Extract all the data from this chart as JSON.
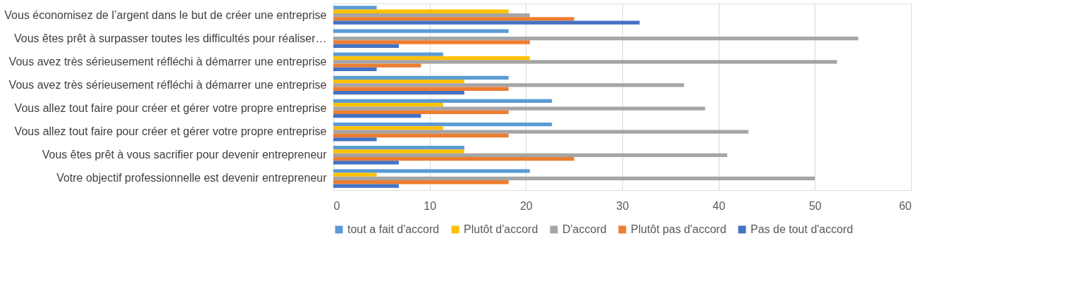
{
  "chart_data": {
    "type": "bar",
    "orientation": "horizontal",
    "categories": [
      "Vous économisez de l’argent dans le but de créer une entreprise",
      "Vous êtes prêt à surpasser toutes les difficultés pour réaliser…",
      "Vous avez très sérieusement réfléchi à démarrer une entreprise",
      "Vous avez très sérieusement réfléchi à démarrer une entreprise",
      "Vous allez tout faire pour créer et gérer votre propre entreprise",
      "Vous allez tout faire pour créer et gérer votre propre entreprise",
      "Vous êtes prêt à vous sacrifier pour devenir entrepreneur",
      "Votre objectif professionnelle est devenir entrepreneur"
    ],
    "series": [
      {
        "name": "tout a fait d'accord",
        "color": "#5b9bd5",
        "values": [
          4.5,
          18.2,
          11.4,
          18.2,
          22.7,
          22.7,
          13.6,
          20.4
        ]
      },
      {
        "name": "Plutôt d'accord",
        "color": "#ffc000",
        "values": [
          18.2,
          null,
          20.4,
          13.6,
          11.4,
          11.4,
          13.6,
          4.5
        ]
      },
      {
        "name": "D'accord",
        "color": "#a5a5a5",
        "values": [
          20.4,
          54.5,
          52.3,
          36.4,
          38.6,
          43.1,
          40.9,
          50.0
        ]
      },
      {
        "name": "Plutôt pas d'accord",
        "color": "#ed7d31",
        "values": [
          25.0,
          20.4,
          9.1,
          18.2,
          18.2,
          18.2,
          25.0,
          18.2
        ]
      },
      {
        "name": "Pas de tout d'accord",
        "color": "#4472c4",
        "values": [
          31.8,
          6.8,
          4.5,
          13.6,
          9.1,
          4.5,
          6.8,
          6.8
        ]
      }
    ],
    "xlim": [
      0,
      60
    ],
    "xticks": [
      0,
      10,
      20,
      30,
      40,
      50,
      60
    ],
    "grid": "x",
    "legend": "bottom"
  }
}
